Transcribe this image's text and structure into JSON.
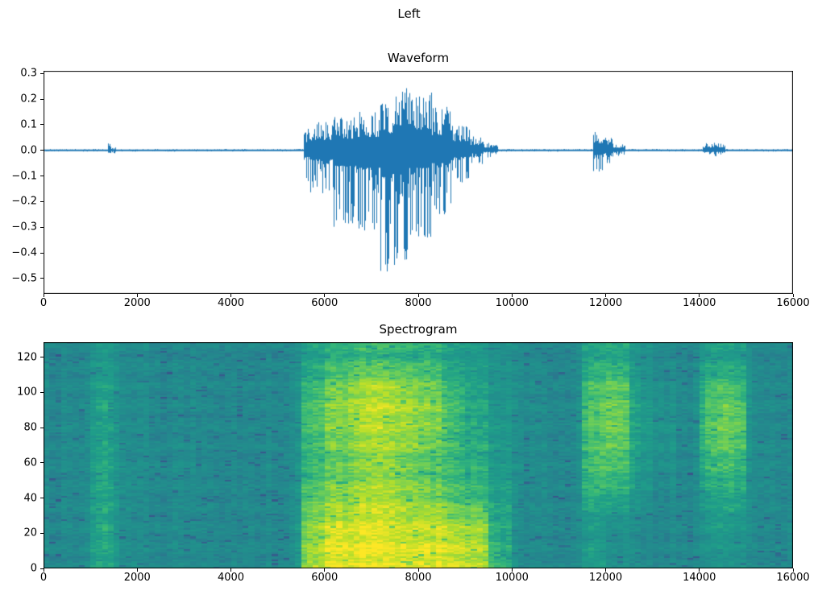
{
  "figure": {
    "suptitle": "Left",
    "background_color": "#ffffff",
    "text_color": "#000000"
  },
  "chart_data": [
    {
      "type": "line",
      "title": "Waveform",
      "xlabel": "",
      "ylabel": "",
      "line_color": "#1f77b4",
      "xlim": [
        0,
        16000
      ],
      "ylim": [
        -0.56,
        0.31
      ],
      "x_ticks": {
        "values": [
          0,
          2000,
          4000,
          6000,
          8000,
          10000,
          12000,
          14000,
          16000
        ],
        "labels": [
          "0",
          "2000",
          "4000",
          "6000",
          "8000",
          "10000",
          "12000",
          "14000",
          "16000"
        ]
      },
      "y_ticks": {
        "values": [
          0.3,
          0.2,
          0.1,
          0.0,
          -0.1,
          -0.2,
          -0.3,
          -0.4,
          -0.5
        ],
        "labels": [
          "0.3",
          "0.2",
          "0.1",
          "0.0",
          "−0.1",
          "−0.2",
          "−0.3",
          "−0.4",
          "−0.5"
        ]
      },
      "envelope_format": [
        "x_start",
        "x_end",
        "amp_pos",
        "amp_neg"
      ],
      "envelope_segments": [
        [
          0,
          1380,
          0.005,
          0.005
        ],
        [
          1380,
          1450,
          0.035,
          0.045
        ],
        [
          1450,
          1540,
          0.012,
          0.012
        ],
        [
          1540,
          5560,
          0.005,
          0.005
        ],
        [
          5560,
          5700,
          0.09,
          0.13
        ],
        [
          5700,
          6200,
          0.11,
          0.18
        ],
        [
          6200,
          6700,
          0.13,
          0.3
        ],
        [
          6700,
          7200,
          0.15,
          0.34
        ],
        [
          7200,
          7450,
          0.19,
          0.52
        ],
        [
          7450,
          7800,
          0.27,
          0.46
        ],
        [
          7800,
          8300,
          0.23,
          0.34
        ],
        [
          8300,
          8700,
          0.17,
          0.25
        ],
        [
          8700,
          9100,
          0.1,
          0.13
        ],
        [
          9100,
          9400,
          0.06,
          0.06
        ],
        [
          9400,
          9700,
          0.03,
          0.03
        ],
        [
          9700,
          11740,
          0.005,
          0.005
        ],
        [
          11740,
          11960,
          0.075,
          0.09
        ],
        [
          11960,
          12160,
          0.05,
          0.055
        ],
        [
          12160,
          12420,
          0.025,
          0.025
        ],
        [
          12420,
          14080,
          0.005,
          0.005
        ],
        [
          14080,
          14560,
          0.03,
          0.03
        ],
        [
          14560,
          16000,
          0.005,
          0.005
        ]
      ]
    },
    {
      "type": "heatmap",
      "title": "Spectrogram",
      "xlabel": "",
      "ylabel": "",
      "colormap": "viridis",
      "colormap_stops": [
        "#440154",
        "#482878",
        "#3e4989",
        "#31688e",
        "#26828e",
        "#21918c",
        "#1f9e89",
        "#35b779",
        "#6ece58",
        "#b5de2b",
        "#fde725"
      ],
      "xlim": [
        0,
        16000
      ],
      "ylim": [
        0,
        128.5
      ],
      "x_ticks": {
        "values": [
          0,
          2000,
          4000,
          6000,
          8000,
          10000,
          12000,
          14000,
          16000
        ],
        "labels": [
          "0",
          "2000",
          "4000",
          "6000",
          "8000",
          "10000",
          "12000",
          "14000",
          "16000"
        ]
      },
      "y_ticks": {
        "values": [
          0,
          20,
          40,
          60,
          80,
          100,
          120
        ],
        "labels": [
          "0",
          "20",
          "40",
          "60",
          "80",
          "100",
          "120"
        ]
      },
      "grid": {
        "x_range": [
          0,
          16000
        ],
        "freq_range": [
          0,
          128
        ],
        "cols": 32,
        "rows": 8,
        "rows_bottom_to_top": true,
        "intensity_values": [
          [
            0.45,
            0.45,
            0.62,
            0.5,
            0.45,
            0.45,
            0.45,
            0.45,
            0.45,
            0.45,
            0.46,
            0.88,
            0.97,
            0.98,
            0.98,
            0.97,
            0.96,
            0.94,
            0.9,
            0.68,
            0.46,
            0.45,
            0.45,
            0.6,
            0.5,
            0.46,
            0.45,
            0.45,
            0.5,
            0.52,
            0.46,
            0.45
          ],
          [
            0.45,
            0.45,
            0.62,
            0.5,
            0.45,
            0.45,
            0.45,
            0.45,
            0.45,
            0.45,
            0.46,
            0.84,
            0.93,
            0.95,
            0.95,
            0.93,
            0.92,
            0.9,
            0.86,
            0.64,
            0.46,
            0.45,
            0.45,
            0.58,
            0.5,
            0.46,
            0.45,
            0.45,
            0.54,
            0.56,
            0.46,
            0.45
          ],
          [
            0.45,
            0.45,
            0.62,
            0.5,
            0.45,
            0.45,
            0.45,
            0.45,
            0.45,
            0.45,
            0.46,
            0.78,
            0.84,
            0.88,
            0.9,
            0.86,
            0.82,
            0.76,
            0.7,
            0.6,
            0.47,
            0.45,
            0.45,
            0.68,
            0.64,
            0.52,
            0.45,
            0.45,
            0.6,
            0.64,
            0.48,
            0.45
          ],
          [
            0.45,
            0.45,
            0.61,
            0.5,
            0.45,
            0.45,
            0.45,
            0.45,
            0.45,
            0.45,
            0.46,
            0.7,
            0.76,
            0.82,
            0.86,
            0.82,
            0.76,
            0.72,
            0.66,
            0.56,
            0.47,
            0.46,
            0.45,
            0.74,
            0.74,
            0.56,
            0.48,
            0.45,
            0.68,
            0.7,
            0.48,
            0.45
          ],
          [
            0.45,
            0.45,
            0.6,
            0.49,
            0.45,
            0.45,
            0.45,
            0.45,
            0.45,
            0.45,
            0.46,
            0.72,
            0.8,
            0.86,
            0.88,
            0.86,
            0.8,
            0.72,
            0.64,
            0.55,
            0.47,
            0.46,
            0.45,
            0.78,
            0.8,
            0.58,
            0.52,
            0.45,
            0.74,
            0.78,
            0.48,
            0.45
          ],
          [
            0.45,
            0.45,
            0.6,
            0.49,
            0.45,
            0.45,
            0.45,
            0.45,
            0.45,
            0.45,
            0.46,
            0.74,
            0.84,
            0.9,
            0.92,
            0.9,
            0.84,
            0.74,
            0.64,
            0.54,
            0.47,
            0.46,
            0.45,
            0.78,
            0.82,
            0.58,
            0.52,
            0.45,
            0.74,
            0.8,
            0.48,
            0.45
          ],
          [
            0.45,
            0.45,
            0.58,
            0.48,
            0.45,
            0.45,
            0.45,
            0.45,
            0.45,
            0.45,
            0.46,
            0.7,
            0.8,
            0.86,
            0.88,
            0.85,
            0.8,
            0.7,
            0.6,
            0.52,
            0.46,
            0.45,
            0.45,
            0.74,
            0.78,
            0.54,
            0.48,
            0.45,
            0.7,
            0.72,
            0.47,
            0.45
          ],
          [
            0.44,
            0.44,
            0.54,
            0.47,
            0.44,
            0.44,
            0.44,
            0.44,
            0.44,
            0.44,
            0.45,
            0.6,
            0.66,
            0.7,
            0.7,
            0.68,
            0.66,
            0.6,
            0.55,
            0.5,
            0.45,
            0.44,
            0.44,
            0.64,
            0.64,
            0.5,
            0.45,
            0.44,
            0.58,
            0.58,
            0.46,
            0.44
          ]
        ]
      },
      "noise_amplitude": 0.11
    }
  ]
}
